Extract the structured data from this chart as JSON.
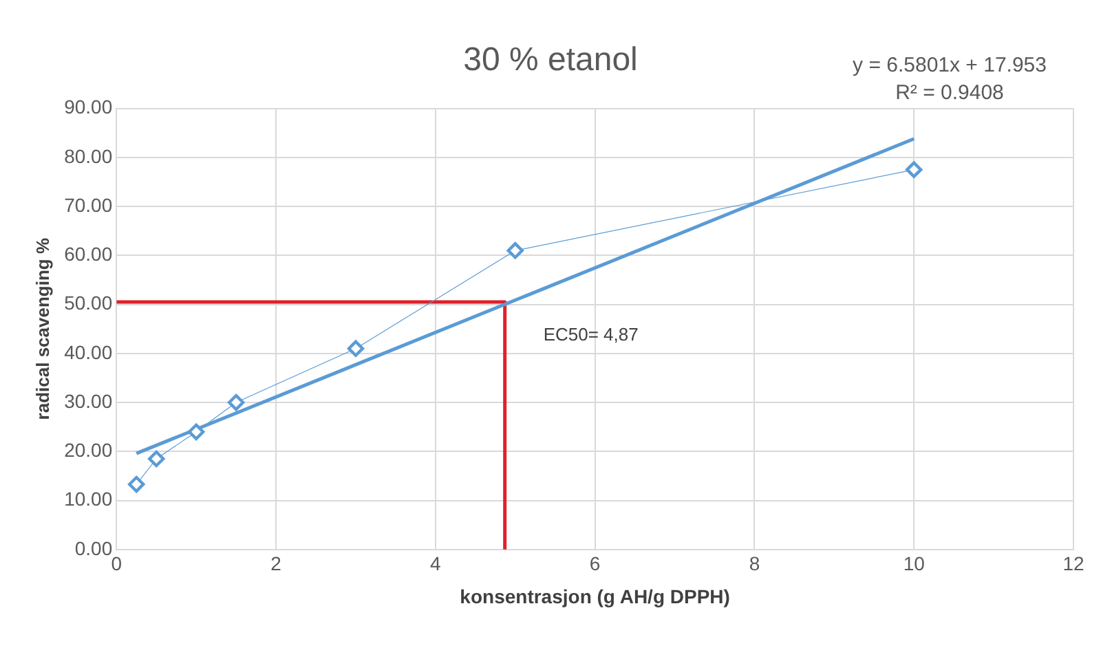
{
  "chart_data": {
    "type": "line",
    "title": "30 % etanol",
    "xlabel": "konsentrasjon (g AH/g DPPH)",
    "ylabel": "radical scavenging %",
    "series": [
      {
        "color": "#5b9bd5",
        "marker": "diamond",
        "x": [
          0.25,
          0.5,
          1,
          1.5,
          3,
          5,
          10
        ],
        "values": [
          13.3,
          18.5,
          24,
          30,
          41,
          61,
          77.5
        ]
      },
      {
        "color": "#5b9bd5",
        "marker": "none",
        "x": [
          0.25,
          10
        ],
        "values": [
          19.6,
          83.8
        ]
      },
      {
        "color": "#e0202a",
        "marker": "none",
        "x": [
          0,
          4.87,
          4.87
        ],
        "values": [
          50.5,
          50.5,
          0
        ]
      }
    ],
    "xlim": [
      0,
      12
    ],
    "xticks": [
      0,
      2,
      4,
      6,
      8,
      10,
      12
    ],
    "ylim": [
      0,
      90
    ],
    "yticks": [
      {
        "value": 0,
        "label": "0.00"
      },
      {
        "value": 10,
        "label": "10.00"
      },
      {
        "value": 20,
        "label": "20.00"
      },
      {
        "value": 30,
        "label": "30.00"
      },
      {
        "value": 40,
        "label": "40.00"
      },
      {
        "value": 50,
        "label": "50.00"
      },
      {
        "value": 60,
        "label": "60.00"
      },
      {
        "value": 70,
        "label": "70.00"
      },
      {
        "value": 80,
        "label": "80.00"
      },
      {
        "value": 90,
        "label": "90.00"
      }
    ],
    "grid": true,
    "legend": false,
    "annotations": [
      "y = 6.5801x + 17.953",
      "R² = 0.9408",
      {
        "text": "EC50= 4,87",
        "x": 4.87,
        "y": 50.5
      }
    ]
  }
}
